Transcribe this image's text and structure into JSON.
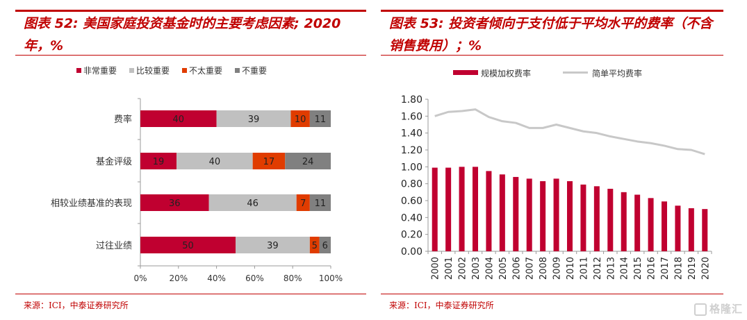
{
  "colors": {
    "title_red": "#C00000",
    "very_important": "#C00030",
    "somewhat_important": "#C0C0C0",
    "not_very_important": "#E03C00",
    "not_important": "#808080",
    "bar_red": "#C00030",
    "line_gray": "#C8C8C8"
  },
  "left": {
    "title": "图表 52: 美国家庭投资基金时的主要考虑因素; 2020年，%",
    "source": "来源：ICI，中泰证券研究所"
  },
  "right": {
    "title": "图表 53: 投资者倾向于支付低于平均水平的费率（不含销售费用）；%",
    "source": "来源：ICI，中泰证券研究所"
  },
  "watermark": "格隆汇",
  "chart_data": [
    {
      "type": "bar",
      "orientation": "horizontal",
      "stacked": "percent",
      "title": "图表 52: 美国家庭投资基金时的主要考虑因素; 2020年，%",
      "categories": [
        "费率",
        "基金评级",
        "相较业绩基准的表现",
        "过往业绩"
      ],
      "series": [
        {
          "name": "非常重要",
          "color": "#C00030",
          "values": [
            40,
            19,
            36,
            50
          ]
        },
        {
          "name": "比较重要",
          "color": "#C0C0C0",
          "values": [
            39,
            40,
            46,
            39
          ]
        },
        {
          "name": "不太重要",
          "color": "#E03C00",
          "values": [
            10,
            17,
            7,
            5
          ]
        },
        {
          "name": "不重要",
          "color": "#808080",
          "values": [
            11,
            24,
            11,
            6
          ]
        }
      ],
      "xlim": [
        0,
        100
      ],
      "xticks": [
        "0%",
        "20%",
        "40%",
        "60%",
        "80%",
        "100%"
      ],
      "legend": "top-center",
      "data_labels": true,
      "grid": false
    },
    {
      "type": "bar+line",
      "title": "图表 53: 投资者倾向于支付低于平均水平的费率（不含销售费用）；%",
      "categories": [
        "2000",
        "2001",
        "2002",
        "2003",
        "2004",
        "2005",
        "2006",
        "2007",
        "2008",
        "2009",
        "2010",
        "2011",
        "2012",
        "2013",
        "2014",
        "2015",
        "2016",
        "2017",
        "2018",
        "2019",
        "2020"
      ],
      "series": [
        {
          "name": "规模加权费率",
          "type": "bar",
          "color": "#C00030",
          "values": [
            0.99,
            0.99,
            1.0,
            1.0,
            0.95,
            0.91,
            0.88,
            0.86,
            0.83,
            0.86,
            0.83,
            0.79,
            0.77,
            0.74,
            0.7,
            0.67,
            0.63,
            0.59,
            0.54,
            0.51,
            0.5
          ]
        },
        {
          "name": "简单平均费率",
          "type": "line",
          "color": "#C8C8C8",
          "values": [
            1.6,
            1.65,
            1.66,
            1.68,
            1.59,
            1.54,
            1.52,
            1.46,
            1.46,
            1.5,
            1.46,
            1.42,
            1.4,
            1.36,
            1.33,
            1.3,
            1.28,
            1.25,
            1.21,
            1.2,
            1.15
          ]
        }
      ],
      "ylim": [
        0,
        1.8
      ],
      "yticks": [
        "0.00",
        "0.20",
        "0.40",
        "0.60",
        "0.80",
        "1.00",
        "1.20",
        "1.40",
        "1.60",
        "1.80"
      ],
      "legend": "top-center",
      "grid": false
    }
  ]
}
